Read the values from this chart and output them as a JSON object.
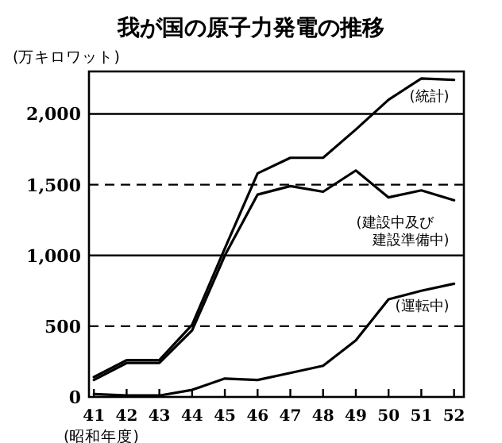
{
  "chart_data": {
    "type": "line",
    "title": "我が国の原子力発電の推移",
    "ylabel": "(万キロワット)",
    "xlabel": "(昭和年度)",
    "x": [
      41,
      42,
      43,
      44,
      45,
      46,
      47,
      48,
      49,
      50,
      51,
      52
    ],
    "series": [
      {
        "name": "(統計)",
        "color": "#000000",
        "values": [
          140,
          260,
          260,
          510,
          1050,
          1580,
          1690,
          1690,
          1890,
          2100,
          2250,
          2240
        ]
      },
      {
        "name": "(建設中及び建設準備中)",
        "color": "#000000",
        "values": [
          120,
          240,
          240,
          470,
          1000,
          1430,
          1490,
          1450,
          1600,
          1410,
          1460,
          1390
        ]
      },
      {
        "name": "(運転中)",
        "color": "#000000",
        "values": [
          20,
          10,
          10,
          50,
          130,
          120,
          170,
          220,
          400,
          690,
          750,
          800
        ]
      }
    ],
    "xlim": [
      40.85,
      52.3
    ],
    "ylim": [
      0,
      2300
    ],
    "xticks": [
      41,
      42,
      43,
      44,
      45,
      46,
      47,
      48,
      49,
      50,
      51,
      52
    ],
    "yticks": [
      0,
      500,
      {
        "value": 1000,
        "label": "1,000"
      },
      {
        "value": 1500,
        "label": "1,500"
      },
      {
        "value": 2000,
        "label": "2,000"
      }
    ],
    "ref_lines": [
      {
        "axis": "y",
        "value": 500,
        "line_style": "dashed"
      },
      {
        "axis": "y",
        "value": 1000,
        "line_style": "solid"
      },
      {
        "axis": "y",
        "value": 1500,
        "line_style": "dashed"
      },
      {
        "axis": "y",
        "value": 2000,
        "line_style": "solid"
      }
    ],
    "legend": false,
    "marker": "none",
    "line_style": "solid"
  }
}
